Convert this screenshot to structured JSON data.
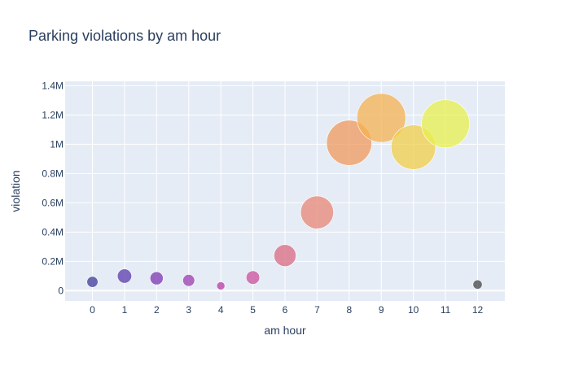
{
  "chart_data": {
    "type": "scatter",
    "title": "Parking violations by am hour",
    "xlabel": "am hour",
    "ylabel": "violation",
    "x": [
      0,
      1,
      2,
      3,
      4,
      5,
      6,
      7,
      8,
      9,
      10,
      11,
      12
    ],
    "y": [
      60000,
      100000,
      85000,
      70000,
      33000,
      90000,
      240000,
      535000,
      1010000,
      1180000,
      980000,
      1140000,
      42000
    ],
    "point_colors": [
      "#3d3a9a",
      "#5a3aaa",
      "#7b36b0",
      "#9c3bb0",
      "#b73aa6",
      "#c94f9c",
      "#d96a80",
      "#e88574",
      "#ef9a5c",
      "#f4b150",
      "#f2cf48",
      "#e7f04e",
      "#444444"
    ],
    "xticks": [
      "0",
      "1",
      "2",
      "3",
      "4",
      "5",
      "6",
      "7",
      "8",
      "9",
      "10",
      "11",
      "12"
    ],
    "yticks": [
      "0",
      "0.2M",
      "0.4M",
      "0.6M",
      "0.8M",
      "1M",
      "1.2M",
      "1.4M"
    ],
    "ytick_values": [
      0,
      200000,
      400000,
      600000,
      800000,
      1000000,
      1200000,
      1400000
    ],
    "xlim": [
      -0.85,
      12.85
    ],
    "ylim": [
      -70000,
      1430000
    ],
    "grid": true,
    "plot_bg": "#e5ecf6",
    "text_color": "#2a3f5f",
    "marker_opacity": 0.75
  }
}
